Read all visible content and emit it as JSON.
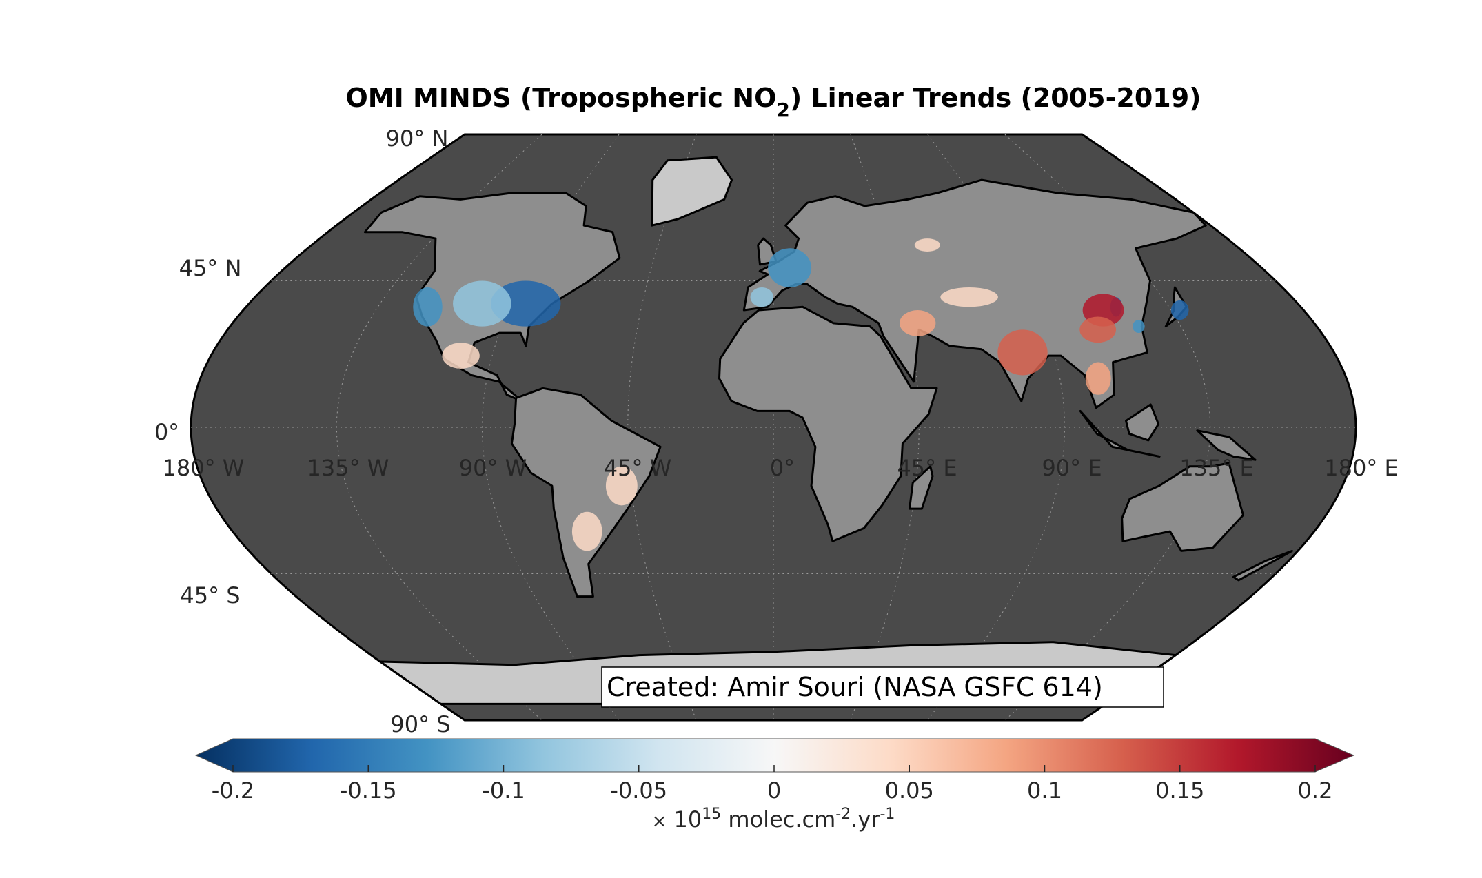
{
  "title": {
    "prefix": "OMI MINDS (Tropospheric NO",
    "subscript": "2",
    "suffix": ") Linear Trends (2005-2019)"
  },
  "map": {
    "projection": "Robinson",
    "ocean_color": "#4a4a4a",
    "land_color": "#8e8e8e",
    "lat_labels": {
      "n90": "90° N",
      "n45": "45° N",
      "eq": "0°",
      "s45": "45° S",
      "s90": "90° S"
    },
    "lon_labels": {
      "w180": "180° W",
      "w135": "135° W",
      "w90": "90° W",
      "w45": "45° W",
      "p0": "0°",
      "e45": "45° E",
      "e90": "90° E",
      "e135": "135° E",
      "e180": "180° E"
    },
    "credit": "Created: Amir Souri (NASA GSFC 614)"
  },
  "colorbar": {
    "min": -0.2,
    "max": 0.2,
    "ticks": [
      "-0.2",
      "-0.15",
      "-0.1",
      "-0.05",
      "0",
      "0.05",
      "0.1",
      "0.15",
      "0.2"
    ],
    "unit": {
      "times": "×",
      "base": "10",
      "exp": "15",
      "unit_text": " molec.cm",
      "exp2": "-2",
      "mid": ".yr",
      "exp3": "-1"
    },
    "colors": [
      "#053061",
      "#2166ac",
      "#4393c3",
      "#92c5de",
      "#d1e5f0",
      "#f7f7f7",
      "#fddbc7",
      "#f4a582",
      "#d6604d",
      "#b2182b",
      "#67001f"
    ]
  }
}
